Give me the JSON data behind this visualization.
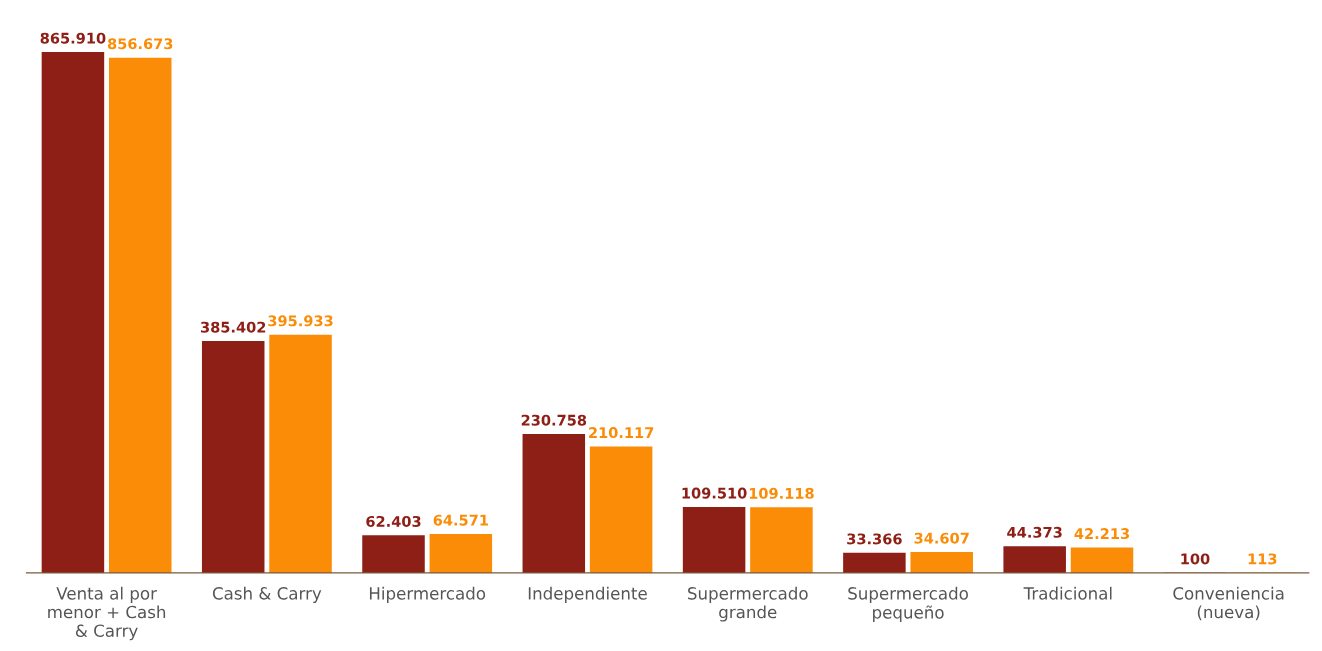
{
  "chart_data": {
    "type": "bar",
    "categories": [
      "Venta al por\nmenor + Cash\n& Carry",
      "Cash & Carry",
      "Hipermercado",
      "Independiente",
      "Supermercado\ngrande",
      "Supermercado\npequeño",
      "Tradicional",
      "Conveniencia\n(nueva)"
    ],
    "series": [
      {
        "color": "#8e1f17",
        "values": [
          865910,
          385402,
          62403,
          230758,
          109510,
          33366,
          44373,
          100
        ],
        "value_labels": [
          "865.910",
          "385.402",
          "62.403",
          "230.758",
          "109.510",
          "33.366",
          "44.373",
          "100"
        ]
      },
      {
        "color": "#fb8c08",
        "values": [
          856673,
          395933,
          64571,
          210117,
          109118,
          34607,
          42213,
          113
        ],
        "value_labels": [
          "856.673",
          "395.933",
          "64.571",
          "210.117",
          "109.118",
          "34.607",
          "42.213",
          "113"
        ]
      }
    ],
    "grid": false,
    "legend": false
  }
}
